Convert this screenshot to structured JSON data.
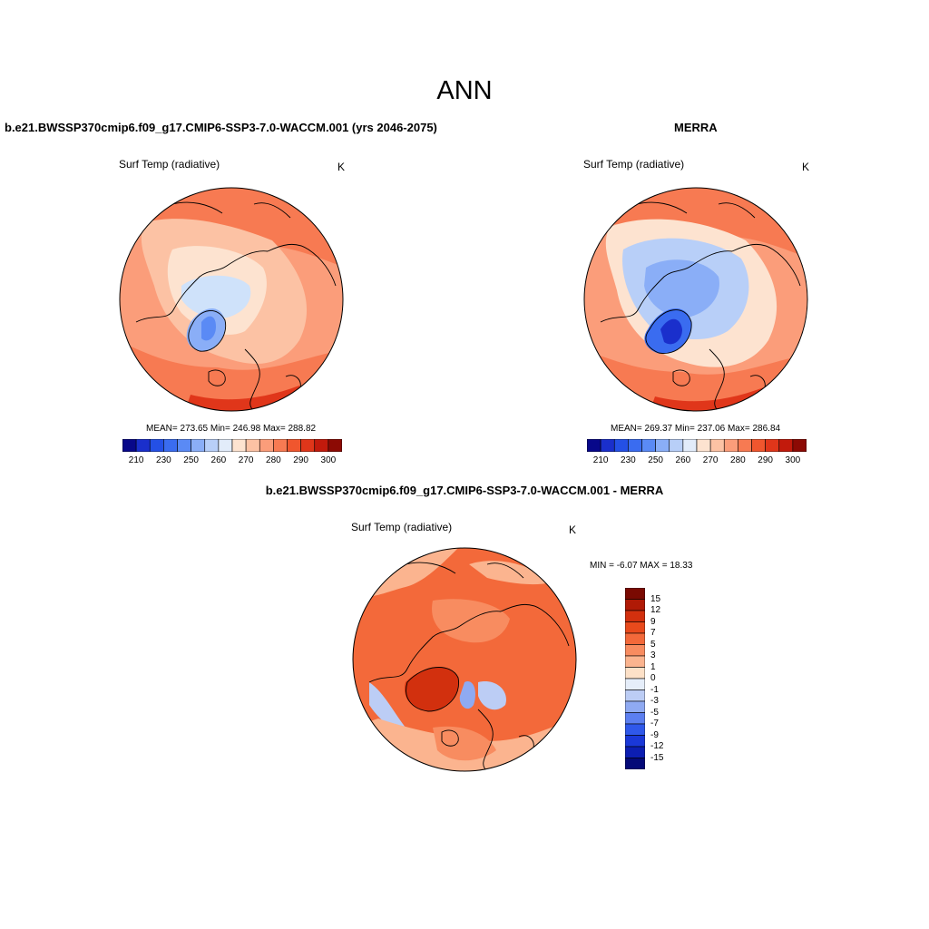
{
  "page_title": "ANN",
  "panels": [
    {
      "title": "b.e21.BWSSP370cmip6.f09_g17.CMIP6-SSP3-7.0-WACCM.001 (yrs 2046-2075)",
      "variable": "Surf Temp (radiative)",
      "units": "K",
      "stats": "MEAN= 273.65  Min= 246.98  Max= 288.82",
      "colorbar": {
        "ticks": [
          "210",
          "230",
          "250",
          "260",
          "270",
          "280",
          "290",
          "300"
        ],
        "colors": [
          "#08088a",
          "#1a2fcc",
          "#2450e6",
          "#3a6cf0",
          "#5a8af5",
          "#8aaef7",
          "#b8cff8",
          "#e2ecfa",
          "#fde3d0",
          "#fcc2a4",
          "#fb9d7a",
          "#f77a52",
          "#f0562e",
          "#e0361a",
          "#c21a0c",
          "#8c0a04"
        ]
      }
    },
    {
      "title": "MERRA",
      "variable": "Surf Temp (radiative)",
      "units": "K",
      "stats": "MEAN= 269.37  Min= 237.06  Max= 286.84",
      "colorbar": {
        "ticks": [
          "210",
          "230",
          "250",
          "260",
          "270",
          "280",
          "290",
          "300"
        ],
        "colors": [
          "#08088a",
          "#1a2fcc",
          "#2450e6",
          "#3a6cf0",
          "#5a8af5",
          "#8aaef7",
          "#b8cff8",
          "#e2ecfa",
          "#fde3d0",
          "#fcc2a4",
          "#fb9d7a",
          "#f77a52",
          "#f0562e",
          "#e0361a",
          "#c21a0c",
          "#8c0a04"
        ]
      }
    }
  ],
  "difference": {
    "title": "b.e21.BWSSP370cmip6.f09_g17.CMIP6-SSP3-7.0-WACCM.001 - MERRA",
    "variable": "Surf Temp (radiative)",
    "units": "K",
    "minmax": "MIN =  -6.07 MAX =  18.33",
    "colorbar": {
      "ticks": [
        "15",
        "12",
        "9",
        "7",
        "5",
        "3",
        "1",
        "0",
        "-1",
        "-3",
        "-5",
        "-7",
        "-9",
        "-12",
        "-15"
      ],
      "colors": [
        "#7a0a02",
        "#b01a06",
        "#d2300e",
        "#e84a1c",
        "#f3693a",
        "#f88c60",
        "#fbb48f",
        "#fde1c8",
        "#e6eefa",
        "#bccdf5",
        "#8faaf2",
        "#5c7ff0",
        "#2f58ea",
        "#1a38d8",
        "#0c1eb2",
        "#040a78"
      ]
    }
  },
  "colors": {
    "land_line": "#000000",
    "ocean_fill_left": "#fcc2a4",
    "ocean_fill_right": "#fcc2a4",
    "ice_blue": "#cfe2fa",
    "greenland_blue_left": "#8aaef7",
    "greenland_blue_right": "#2f58ea",
    "diff_base": "#f3693a"
  }
}
